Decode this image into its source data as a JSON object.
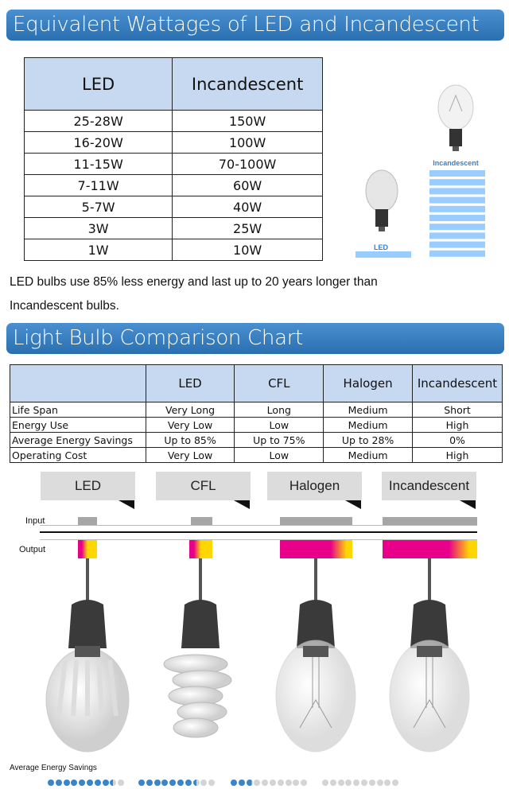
{
  "header1": "Equivalent Wattages of LED and Incandescent Bulbs",
  "wattage_table": {
    "columns": [
      "LED",
      "Incandescent"
    ],
    "rows": [
      [
        "25-28W",
        "150W"
      ],
      [
        "16-20W",
        "100W"
      ],
      [
        "11-15W",
        "70-100W"
      ],
      [
        "7-11W",
        "60W"
      ],
      [
        "5-7W",
        "40W"
      ],
      [
        "3W",
        "25W"
      ],
      [
        "1W",
        "10W"
      ]
    ]
  },
  "side_graphic": {
    "led_label": "LED",
    "incandescent_label": "Incandescent",
    "led_bars": 1,
    "incandescent_bars": 10,
    "color": "#99ccff"
  },
  "paragraph": {
    "line1": "LED bulbs use 85% less energy and last up to 20 years longer than",
    "line2": "Incandescent bulbs."
  },
  "header2": "Light Bulb Comparison Chart",
  "comparison_table": {
    "columns": [
      "",
      "LED",
      "CFL",
      "Halogen",
      "Incandescent"
    ],
    "rows": [
      [
        "Life Span",
        "Very Long",
        "Long",
        "Medium",
        "Short"
      ],
      [
        "Energy Use",
        "Very Low",
        "Low",
        "Medium",
        "High"
      ],
      [
        "Average Energy Savings",
        "Up to 85%",
        "Up to 75%",
        "Up to 28%",
        "0%"
      ],
      [
        "Operating Cost",
        "Very Low",
        "Low",
        "Medium",
        "High"
      ]
    ]
  },
  "diagram": {
    "bulbs": [
      "LED",
      "CFL",
      "Halogen",
      "Incandescent"
    ],
    "input_label": "Input",
    "output_label": "Output",
    "savings_label": "Average Energy Savings",
    "savings_dots_filled": [
      8.5,
      7.5,
      2.8,
      0
    ],
    "savings_dots_total": 10,
    "colors": {
      "input": "#a6a6a6",
      "output_start": "#e8008a",
      "output_end": "#ffd700",
      "dot_on": "#3a85c8",
      "dot_off": "#d4d4d4"
    }
  }
}
